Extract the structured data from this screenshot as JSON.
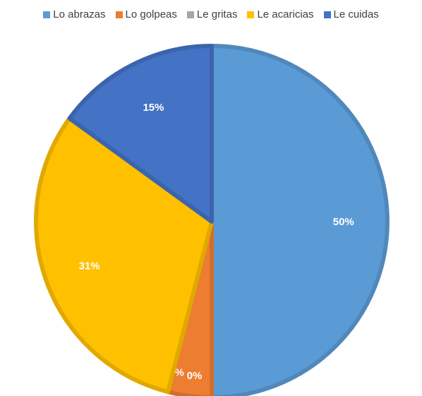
{
  "chart_data": {
    "type": "pie",
    "title": "",
    "categories": [
      "Lo abrazas",
      "Lo golpeas",
      "Le gritas",
      "Le acaricias",
      "Le cuidas"
    ],
    "values": [
      50,
      4,
      0,
      31,
      15
    ],
    "labels": [
      "50%",
      "4%",
      "0%",
      "31%",
      "15%"
    ],
    "colors": [
      "#5B9BD5",
      "#ED7D31",
      "#A5A5A5",
      "#FFC000",
      "#4472C4"
    ],
    "legend_position": "top",
    "start_angle": "12 o'clock",
    "direction": "clockwise"
  }
}
